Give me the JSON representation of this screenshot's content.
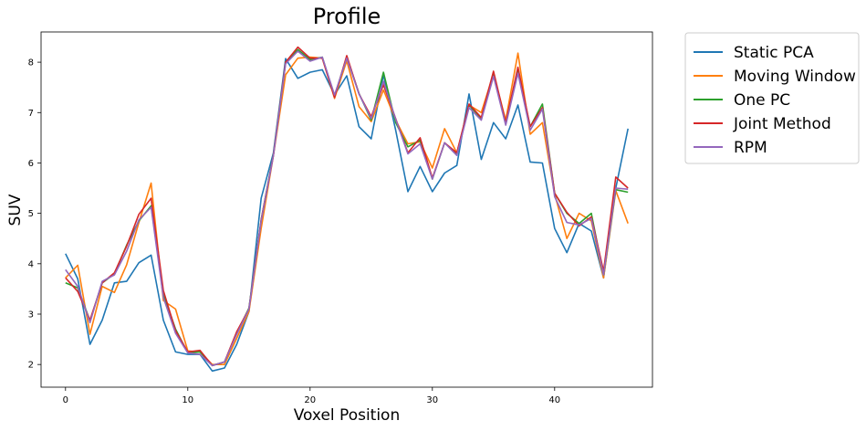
{
  "chart_data": {
    "type": "line",
    "title": "Profile",
    "xlabel": "Voxel Position",
    "ylabel": "SUV",
    "xlim": [
      -2,
      48
    ],
    "ylim": [
      1.55,
      8.6
    ],
    "xticks": [
      0,
      10,
      20,
      30,
      40
    ],
    "yticks": [
      2,
      3,
      4,
      5,
      6,
      7,
      8
    ],
    "grid": false,
    "legend_position": "outside-top-right",
    "x": [
      0,
      1,
      2,
      3,
      4,
      5,
      6,
      7,
      8,
      9,
      10,
      11,
      12,
      13,
      14,
      15,
      16,
      17,
      18,
      19,
      20,
      21,
      22,
      23,
      24,
      25,
      26,
      27,
      28,
      29,
      30,
      31,
      32,
      33,
      34,
      35,
      36,
      37,
      38,
      39,
      40,
      41,
      42,
      43,
      44,
      45,
      46
    ],
    "series": [
      {
        "name": "Static PCA",
        "color": "#1f77b4",
        "values": [
          4.2,
          3.7,
          2.4,
          2.88,
          3.62,
          3.65,
          4.02,
          4.17,
          2.88,
          2.25,
          2.2,
          2.2,
          1.87,
          1.93,
          2.4,
          3.05,
          5.3,
          6.2,
          8.07,
          7.68,
          7.8,
          7.85,
          7.35,
          7.73,
          6.72,
          6.48,
          7.75,
          6.65,
          5.43,
          5.93,
          5.43,
          5.8,
          5.95,
          7.37,
          6.07,
          6.8,
          6.48,
          7.15,
          6.02,
          6.0,
          4.7,
          4.22,
          4.8,
          4.65,
          3.72,
          5.5,
          6.68
        ]
      },
      {
        "name": "Moving Window",
        "color": "#ff7f0e",
        "values": [
          3.72,
          3.97,
          2.6,
          3.55,
          3.43,
          3.98,
          4.82,
          5.6,
          3.27,
          3.1,
          2.27,
          2.25,
          2.0,
          2.0,
          2.52,
          3.05,
          4.7,
          6.15,
          7.75,
          8.08,
          8.1,
          8.08,
          7.28,
          8.03,
          7.12,
          6.82,
          7.45,
          6.85,
          6.38,
          6.42,
          5.9,
          6.68,
          6.2,
          7.15,
          7.0,
          7.77,
          6.85,
          8.18,
          6.57,
          6.8,
          5.38,
          4.5,
          5.0,
          4.85,
          3.72,
          5.45,
          4.8
        ]
      },
      {
        "name": "One PC",
        "color": "#2ca02c",
        "values": [
          3.62,
          3.52,
          2.87,
          3.62,
          3.8,
          4.37,
          4.85,
          5.15,
          3.4,
          2.7,
          2.23,
          2.25,
          1.98,
          2.05,
          2.62,
          3.12,
          4.87,
          6.17,
          8.0,
          8.25,
          8.05,
          8.1,
          7.33,
          8.1,
          7.38,
          6.85,
          7.8,
          6.8,
          6.32,
          6.45,
          5.68,
          6.4,
          6.17,
          7.15,
          6.88,
          7.78,
          6.77,
          7.82,
          6.72,
          7.17,
          5.4,
          5.0,
          4.8,
          5.0,
          3.78,
          5.47,
          5.42
        ]
      },
      {
        "name": "Joint Method",
        "color": "#d62728",
        "values": [
          3.72,
          3.45,
          2.88,
          3.62,
          3.82,
          4.35,
          4.98,
          5.3,
          3.47,
          2.67,
          2.25,
          2.28,
          1.98,
          2.05,
          2.65,
          3.1,
          4.87,
          6.15,
          8.0,
          8.3,
          8.08,
          8.08,
          7.3,
          8.13,
          7.37,
          6.92,
          7.55,
          6.88,
          6.2,
          6.5,
          5.7,
          6.4,
          6.2,
          7.17,
          6.9,
          7.82,
          6.8,
          7.9,
          6.72,
          7.1,
          5.4,
          5.02,
          4.75,
          4.93,
          3.85,
          5.72,
          5.5
        ]
      },
      {
        "name": "RPM",
        "color": "#9467bd",
        "values": [
          3.88,
          3.55,
          2.83,
          3.65,
          3.78,
          4.25,
          4.87,
          5.12,
          3.33,
          2.62,
          2.23,
          2.2,
          1.98,
          2.05,
          2.6,
          3.1,
          4.85,
          6.15,
          7.97,
          8.22,
          8.02,
          8.1,
          7.35,
          8.08,
          7.37,
          6.88,
          7.62,
          6.87,
          6.18,
          6.38,
          5.68,
          6.4,
          6.15,
          7.1,
          6.85,
          7.72,
          6.75,
          7.78,
          6.65,
          7.07,
          5.33,
          4.82,
          4.77,
          4.9,
          3.78,
          5.5,
          5.48
        ]
      }
    ]
  }
}
